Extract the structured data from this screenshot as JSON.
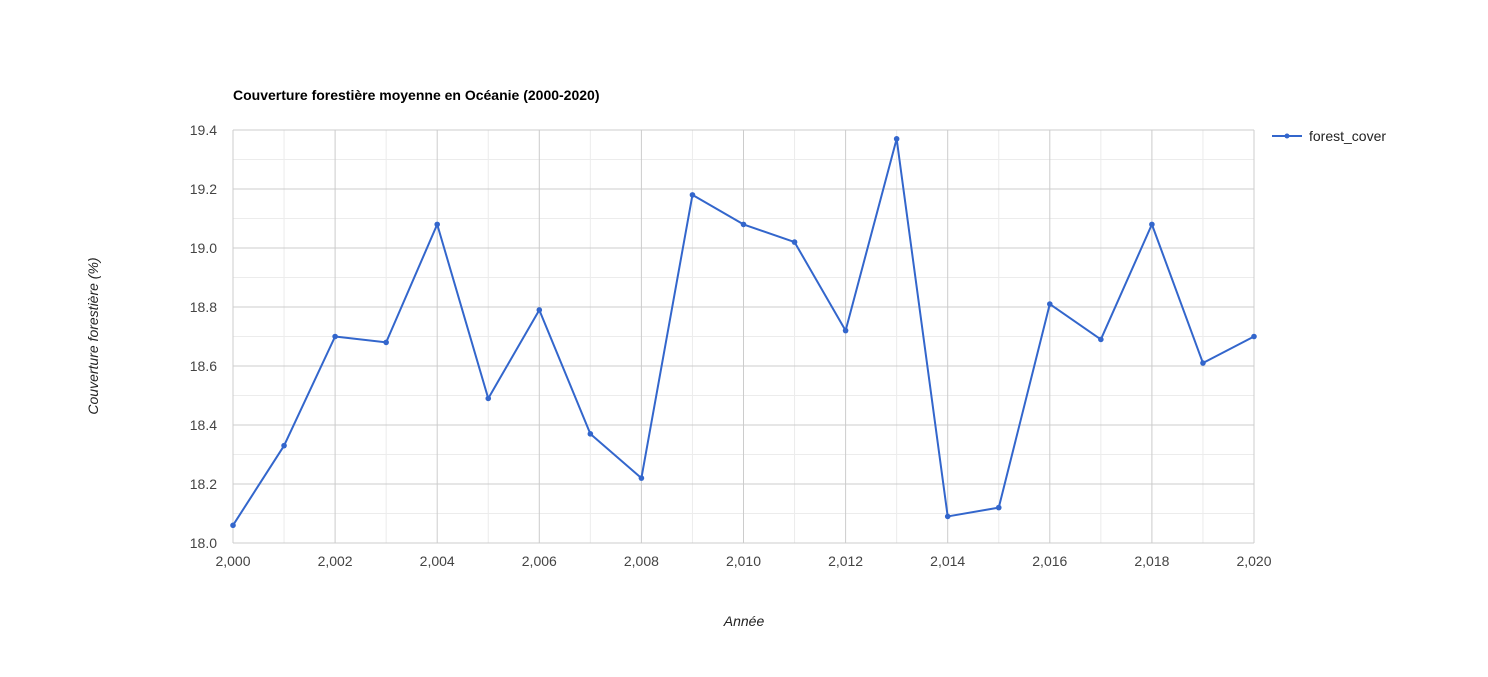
{
  "chart_data": {
    "type": "line",
    "title": "Couverture forestière moyenne en Océanie (2000-2020)",
    "xlabel": "Année",
    "ylabel": "Couverture forestière (%)",
    "x": [
      2000,
      2001,
      2002,
      2003,
      2004,
      2005,
      2006,
      2007,
      2008,
      2009,
      2010,
      2011,
      2012,
      2013,
      2014,
      2015,
      2016,
      2017,
      2018,
      2019,
      2020
    ],
    "x_ticks": [
      "2,000",
      "2,002",
      "2,004",
      "2,006",
      "2,008",
      "2,010",
      "2,012",
      "2,014",
      "2,016",
      "2,018",
      "2,020"
    ],
    "y_ticks": [
      "18.0",
      "18.2",
      "18.4",
      "18.6",
      "18.8",
      "19.0",
      "19.2",
      "19.4"
    ],
    "xlim": [
      2000,
      2020
    ],
    "ylim": [
      18.0,
      19.4
    ],
    "grid": true,
    "legend_position": "top-right",
    "series": [
      {
        "name": "forest_cover",
        "color": "#3366cc",
        "values": [
          18.06,
          18.33,
          18.7,
          18.68,
          19.08,
          18.49,
          18.79,
          18.37,
          18.22,
          19.18,
          19.08,
          19.02,
          18.72,
          19.37,
          18.09,
          18.12,
          18.81,
          18.69,
          19.08,
          18.61,
          18.7
        ]
      }
    ]
  }
}
